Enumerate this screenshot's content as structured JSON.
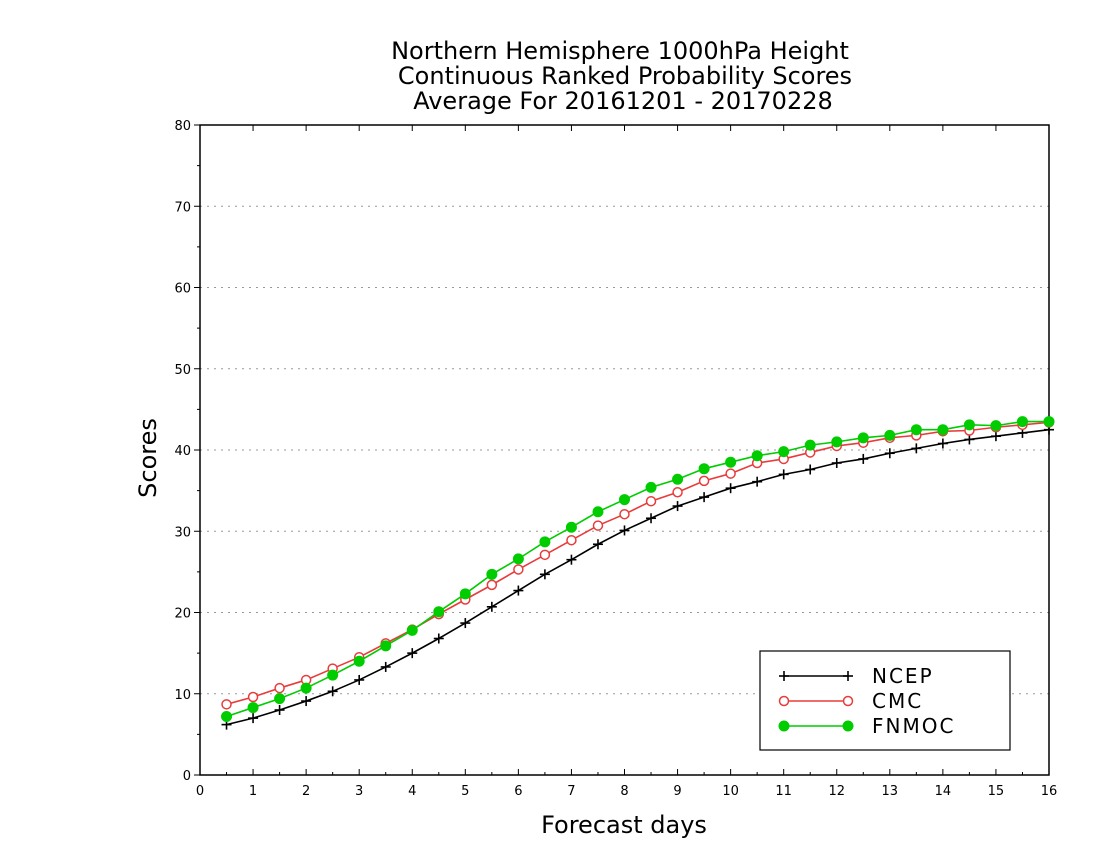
{
  "chart_data": {
    "type": "line",
    "title": [
      "Northern Hemisphere 1000hPa Height",
      "Continuous Ranked Probability Scores",
      "Average For 20161201 - 20170228"
    ],
    "xlabel": "Forecast days",
    "ylabel": "Scores",
    "xlim": [
      0,
      16
    ],
    "ylim": [
      0,
      80
    ],
    "xticks": [
      "0",
      "1",
      "2",
      "3",
      "4",
      "5",
      "6",
      "7",
      "8",
      "9",
      "10",
      "11",
      "12",
      "13",
      "14",
      "15",
      "16"
    ],
    "yticks": [
      "0",
      "10",
      "20",
      "30",
      "40",
      "50",
      "60",
      "70",
      "80"
    ],
    "grid": "horizontal dotted",
    "legend_position": "bottom-right",
    "x": [
      0.5,
      1,
      1.5,
      2,
      2.5,
      3,
      3.5,
      4,
      4.5,
      5,
      5.5,
      6,
      6.5,
      7,
      7.5,
      8,
      8.5,
      9,
      9.5,
      10,
      10.5,
      11,
      11.5,
      12,
      12.5,
      13,
      13.5,
      14,
      14.5,
      15,
      15.5,
      16
    ],
    "series": [
      {
        "name": "NCEP",
        "color": "#000000",
        "marker": "plus",
        "values": [
          6.2,
          7.0,
          8.0,
          9.1,
          10.3,
          11.7,
          13.3,
          15.0,
          16.8,
          18.7,
          20.7,
          22.7,
          24.7,
          26.5,
          28.4,
          30.1,
          31.6,
          33.1,
          34.2,
          35.3,
          36.1,
          37.0,
          37.6,
          38.4,
          38.9,
          39.6,
          40.2,
          40.8,
          41.3,
          41.7,
          42.1,
          42.5
        ]
      },
      {
        "name": "CMC",
        "color": "#e83c3c",
        "marker": "open-circle",
        "values": [
          8.7,
          9.6,
          10.7,
          11.7,
          13.1,
          14.5,
          16.2,
          17.9,
          19.8,
          21.6,
          23.4,
          25.3,
          27.1,
          28.9,
          30.7,
          32.1,
          33.7,
          34.8,
          36.2,
          37.1,
          38.4,
          38.9,
          39.7,
          40.5,
          40.9,
          41.5,
          41.8,
          42.3,
          42.4,
          42.8,
          43.1,
          43.4
        ]
      },
      {
        "name": "FNMOC",
        "color": "#00cc00",
        "marker": "filled-circle",
        "values": [
          7.2,
          8.3,
          9.4,
          10.7,
          12.3,
          14.0,
          15.9,
          17.8,
          20.1,
          22.3,
          24.7,
          26.6,
          28.7,
          30.5,
          32.4,
          33.9,
          35.4,
          36.4,
          37.7,
          38.5,
          39.3,
          39.8,
          40.6,
          41.0,
          41.5,
          41.8,
          42.5,
          42.5,
          43.1,
          43.0,
          43.5,
          43.5
        ]
      }
    ]
  }
}
